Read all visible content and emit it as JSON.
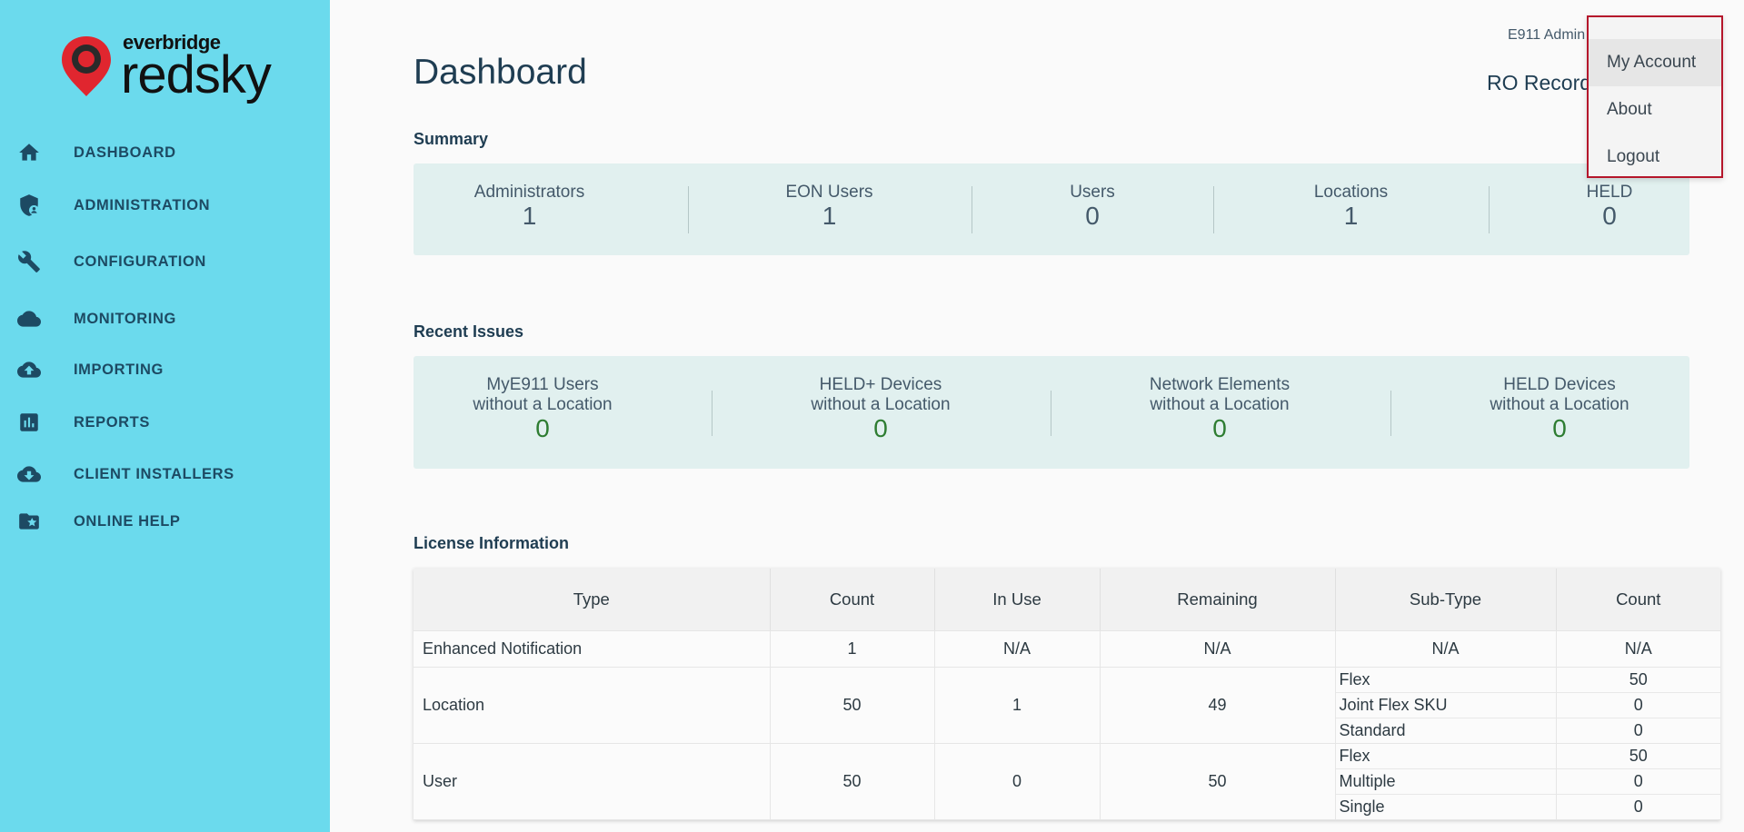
{
  "brand": {
    "small": "everbridge",
    "big": "redsky",
    "pin_color": "#e0262f"
  },
  "nav": [
    {
      "label": "DASHBOARD",
      "icon": "home-icon"
    },
    {
      "label": "ADMINISTRATION",
      "icon": "shield-user-icon"
    },
    {
      "label": "CONFIGURATION",
      "icon": "wrench-icon"
    },
    {
      "label": "MONITORING",
      "icon": "cloud-icon"
    },
    {
      "label": "IMPORTING",
      "icon": "cloud-upload-icon"
    },
    {
      "label": "REPORTS",
      "icon": "bar-chart-icon"
    },
    {
      "label": "CLIENT INSTALLERS",
      "icon": "cloud-download-icon"
    },
    {
      "label": "ONLINE HELP",
      "icon": "folder-star-icon"
    }
  ],
  "header": {
    "title": "Dashboard",
    "user": "E911 Admin",
    "tenant": "RO Record"
  },
  "summary": {
    "title": "Summary",
    "stats": [
      {
        "label": "Administrators",
        "value": "1"
      },
      {
        "label": "EON Users",
        "value": "1"
      },
      {
        "label": "Users",
        "value": "0"
      },
      {
        "label": "Locations",
        "value": "1"
      },
      {
        "label": "HELD",
        "value": "0"
      }
    ]
  },
  "issues": {
    "title": "Recent Issues",
    "stats": [
      {
        "line1": "MyE911 Users",
        "line2": "without a Location",
        "value": "0"
      },
      {
        "line1": "HELD+ Devices",
        "line2": "without a Location",
        "value": "0"
      },
      {
        "line1": "Network Elements",
        "line2": "without a Location",
        "value": "0"
      },
      {
        "line1": "HELD Devices",
        "line2": "without a Location",
        "value": "0"
      }
    ]
  },
  "license": {
    "title": "License Information",
    "columns": [
      "Type",
      "Count",
      "In Use",
      "Remaining",
      "Sub-Type",
      "Count"
    ],
    "rows": [
      {
        "type": "Enhanced Notification",
        "count": "1",
        "in_use": "N/A",
        "remaining": "N/A",
        "subtypes": [
          "N/A"
        ],
        "subcounts": [
          "N/A"
        ]
      },
      {
        "type": "Location",
        "count": "50",
        "in_use": "1",
        "remaining": "49",
        "subtypes": [
          "Flex",
          "Joint Flex SKU",
          "Standard"
        ],
        "subcounts": [
          "50",
          "0",
          "0"
        ]
      },
      {
        "type": "User",
        "count": "50",
        "in_use": "0",
        "remaining": "50",
        "subtypes": [
          "Flex",
          "Multiple",
          "Single"
        ],
        "subcounts": [
          "50",
          "0",
          "0"
        ]
      }
    ]
  },
  "dropdown": {
    "items": [
      "My Account",
      "About",
      "Logout"
    ]
  }
}
